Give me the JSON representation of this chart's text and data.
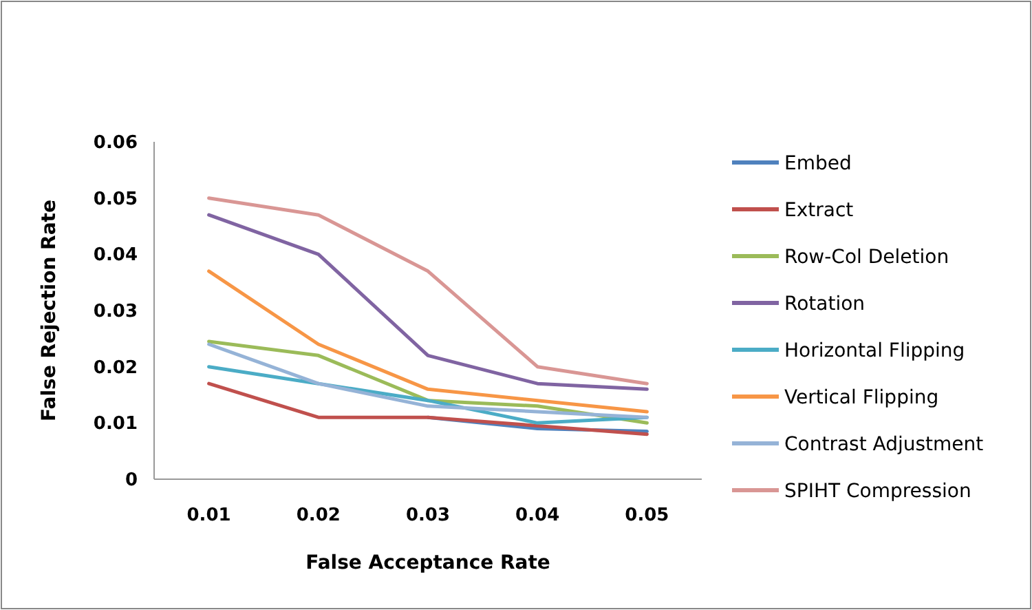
{
  "chart_data": {
    "type": "line",
    "xlabel": "False Acceptance Rate",
    "ylabel": "False Rejection Rate",
    "categories": [
      "0.01",
      "0.02",
      "0.03",
      "0.04",
      "0.05"
    ],
    "ylim": [
      0,
      0.06
    ],
    "yticks": [
      0,
      0.01,
      0.02,
      0.03,
      0.04,
      0.05,
      0.06
    ],
    "grid": false,
    "legend": "right",
    "marker": "none",
    "line_style": "solid",
    "series": [
      {
        "name": "Embed",
        "color": "#4f81bd",
        "values": [
          null,
          null,
          0.011,
          0.009,
          0.0085
        ]
      },
      {
        "name": "Extract",
        "color": "#c0504d",
        "values": [
          0.017,
          0.011,
          0.011,
          0.0095,
          0.008
        ]
      },
      {
        "name": "Row-Col Deletion",
        "color": "#9bbb59",
        "values": [
          0.0245,
          0.022,
          0.014,
          0.013,
          0.01
        ]
      },
      {
        "name": "Rotation",
        "color": "#8064a2",
        "values": [
          0.047,
          0.04,
          0.022,
          0.017,
          0.016
        ]
      },
      {
        "name": "Horizontal Flipping",
        "color": "#4bacc6",
        "values": [
          0.02,
          0.017,
          0.014,
          0.01,
          0.011
        ]
      },
      {
        "name": "Vertical Flipping",
        "color": "#f79646",
        "values": [
          0.037,
          0.024,
          0.016,
          0.014,
          0.012
        ]
      },
      {
        "name": "Contrast Adjustment",
        "color": "#95b3d7",
        "values": [
          0.024,
          0.017,
          0.013,
          0.012,
          0.011
        ]
      },
      {
        "name": "SPIHT Compression",
        "color": "#d99694",
        "values": [
          0.05,
          0.047,
          0.037,
          0.02,
          0.017
        ]
      }
    ]
  }
}
